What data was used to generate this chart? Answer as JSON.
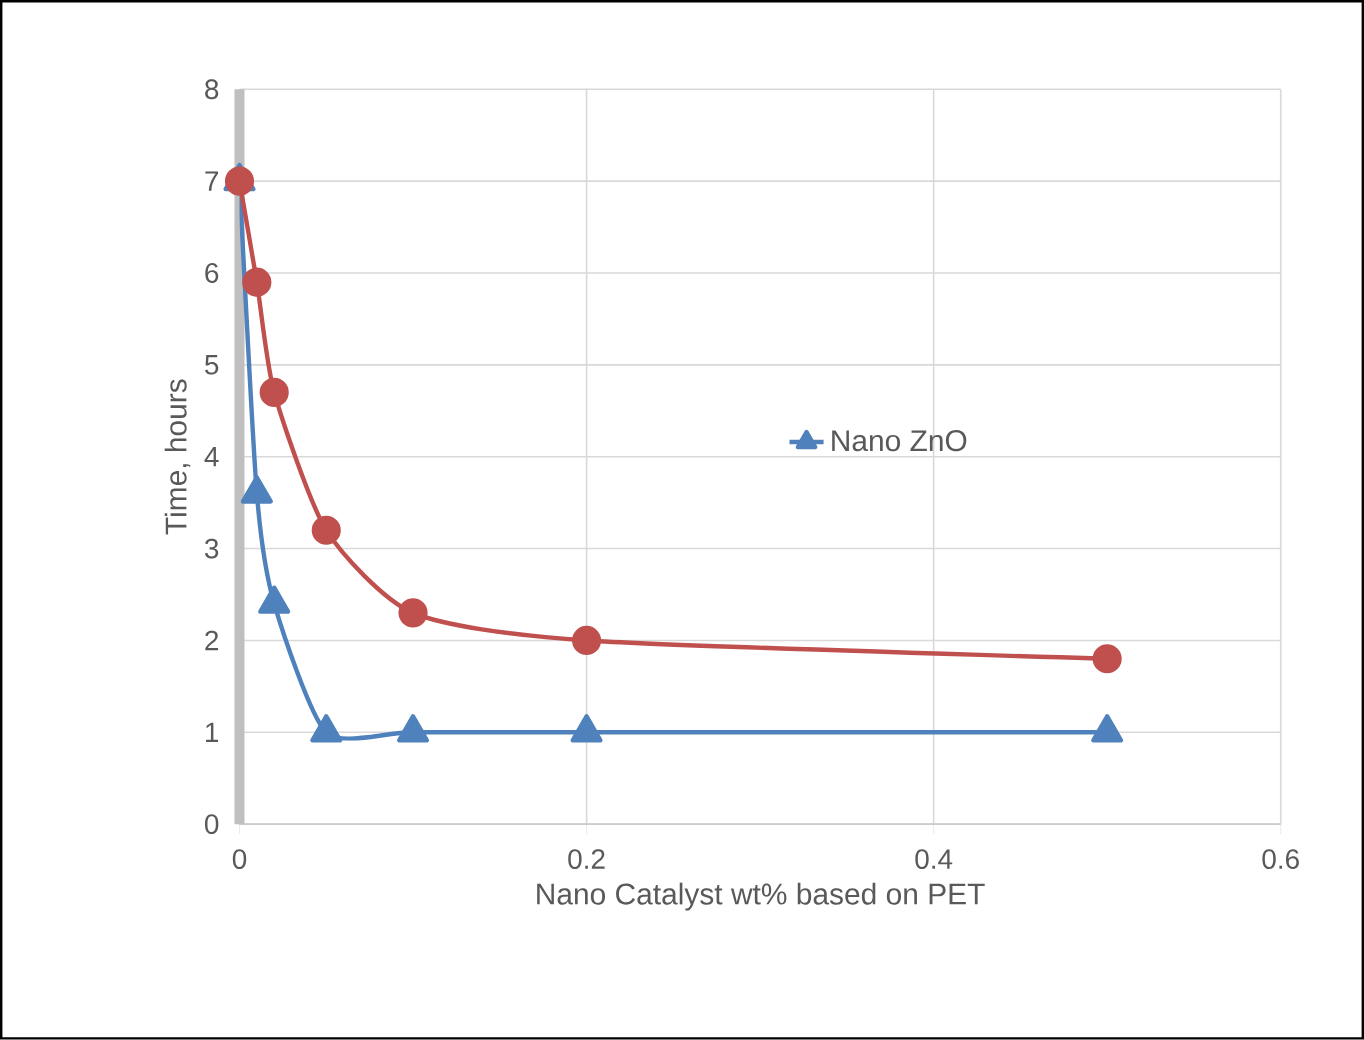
{
  "chart_data": {
    "type": "line",
    "xlabel": "Nano Catalyst wt% based on PET",
    "ylabel": "Time, hours",
    "x": [
      0,
      0.01,
      0.02,
      0.05,
      0.1,
      0.2,
      0.5
    ],
    "series": [
      {
        "color": "#c0504d",
        "marker": "circle",
        "values": [
          7,
          5.9,
          4.7,
          3.2,
          2.3,
          2.0,
          1.8
        ]
      },
      {
        "name": "Nano ZnO",
        "color": "#4f81bd",
        "marker": "triangle",
        "values": [
          7,
          3.6,
          2.4,
          1,
          1,
          1,
          1
        ]
      }
    ],
    "xlim": [
      0,
      0.6
    ],
    "xticks": [
      0,
      0.2,
      0.4,
      0.6
    ],
    "ylim": [
      0,
      8
    ],
    "yticks": [
      0,
      1,
      2,
      3,
      4,
      5,
      6,
      7,
      8
    ],
    "grid": true,
    "legend": "right"
  }
}
